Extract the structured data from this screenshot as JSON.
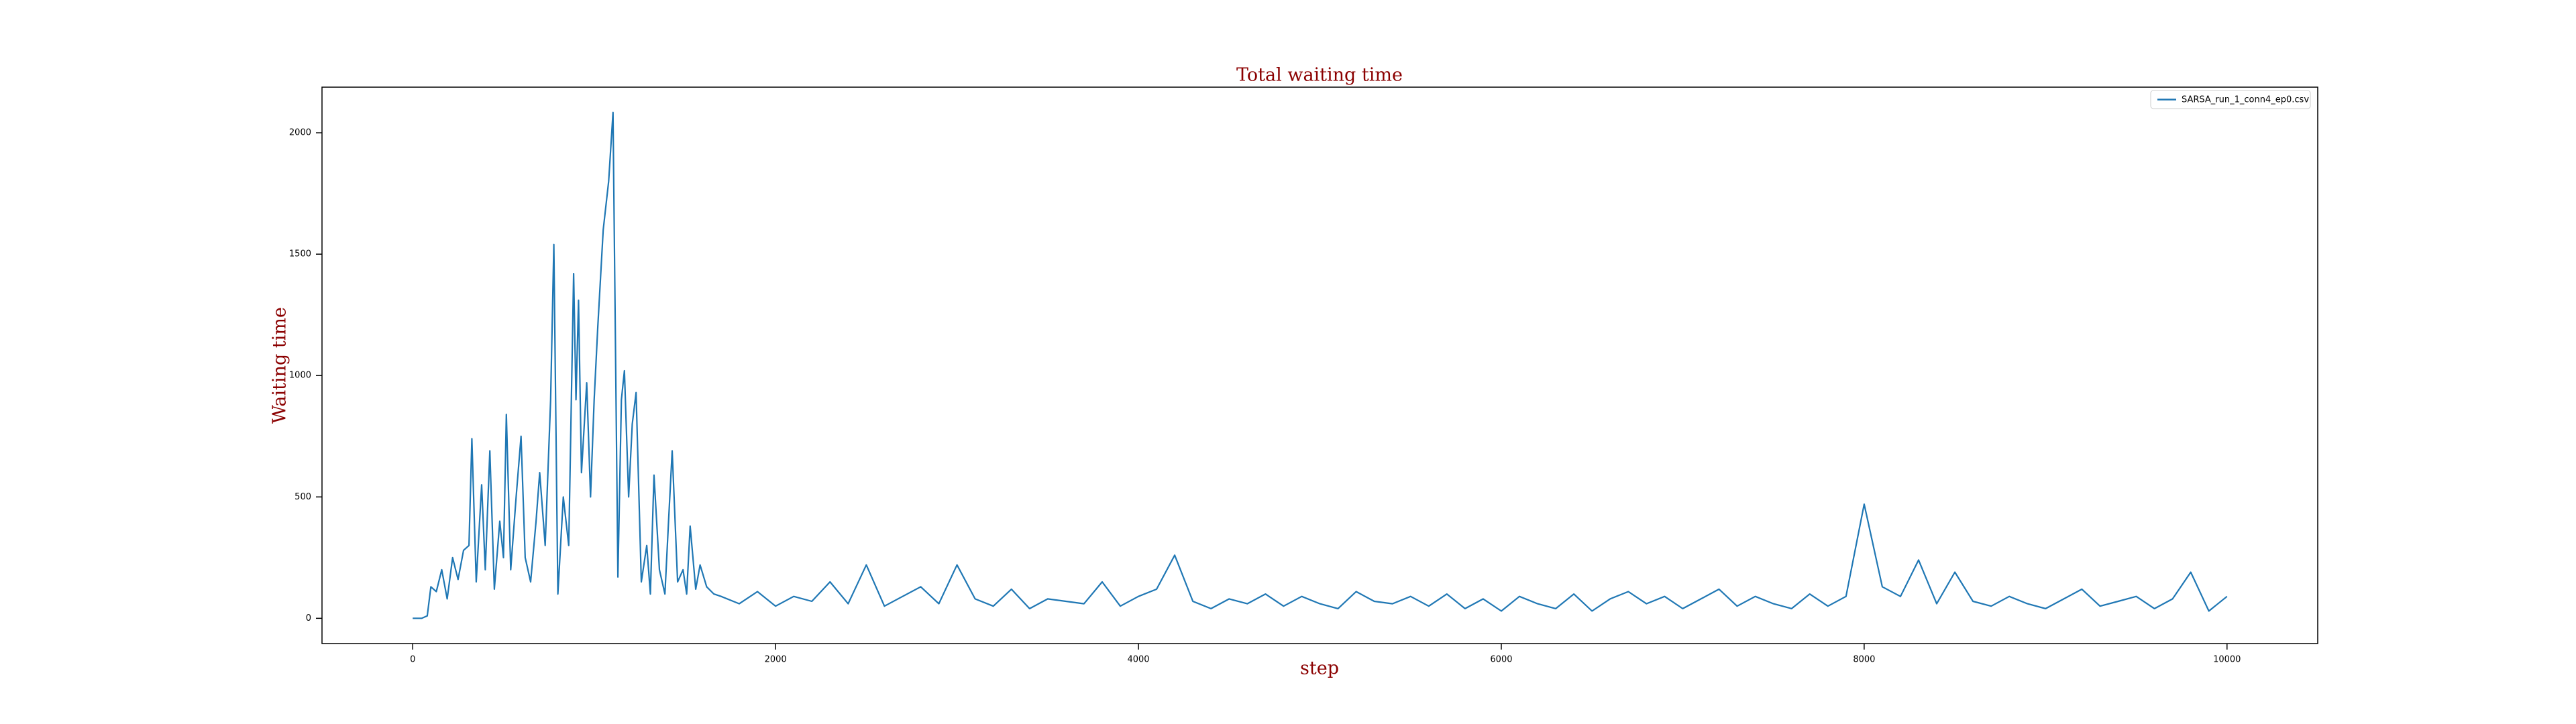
{
  "chart_data": {
    "type": "line",
    "title": "Total waiting time",
    "x_label": "step",
    "y_label": "Waiting time",
    "x": [
      0,
      50,
      80,
      100,
      130,
      160,
      190,
      220,
      250,
      280,
      310,
      326,
      350,
      380,
      400,
      425,
      450,
      480,
      500,
      516,
      540,
      570,
      597,
      620,
      650,
      680,
      700,
      730,
      760,
      778,
      800,
      830,
      860,
      887,
      900,
      914,
      930,
      959,
      980,
      1000,
      1020,
      1050,
      1080,
      1104,
      1131,
      1150,
      1167,
      1190,
      1210,
      1231,
      1260,
      1290,
      1310,
      1330,
      1360,
      1390,
      1410,
      1430,
      1460,
      1490,
      1510,
      1529,
      1560,
      1584,
      1620,
      1660,
      1700,
      1800,
      1900,
      2000,
      2100,
      2200,
      2300,
      2400,
      2500,
      2600,
      2700,
      2800,
      2900,
      3000,
      3100,
      3200,
      3300,
      3400,
      3500,
      3600,
      3700,
      3800,
      3900,
      4000,
      4100,
      4200,
      4300,
      4400,
      4500,
      4600,
      4700,
      4800,
      4900,
      5000,
      5100,
      5200,
      5300,
      5400,
      5500,
      5600,
      5700,
      5800,
      5900,
      6000,
      6100,
      6200,
      6300,
      6400,
      6500,
      6600,
      6700,
      6800,
      6900,
      7000,
      7100,
      7200,
      7300,
      7400,
      7500,
      7600,
      7700,
      7800,
      7900,
      8000,
      8100,
      8200,
      8300,
      8400,
      8500,
      8600,
      8700,
      8800,
      8900,
      9000,
      9100,
      9200,
      9300,
      9400,
      9500,
      9600,
      9700,
      9800,
      9900,
      10000
    ],
    "series": [
      {
        "name": "SARSA_run_1_conn4_ep0.csv",
        "color": "#1f77b4",
        "values": [
          0,
          0,
          10,
          130,
          110,
          200,
          80,
          250,
          160,
          280,
          300,
          740,
          150,
          550,
          200,
          690,
          120,
          400,
          250,
          840,
          200,
          500,
          750,
          250,
          150,
          400,
          600,
          300,
          900,
          1540,
          100,
          500,
          300,
          1420,
          900,
          1310,
          600,
          970,
          500,
          900,
          1200,
          1600,
          1800,
          2084,
          170,
          900,
          1020,
          500,
          800,
          930,
          150,
          300,
          100,
          590,
          200,
          100,
          400,
          690,
          150,
          200,
          100,
          380,
          120,
          220,
          130,
          100,
          90,
          60,
          110,
          50,
          90,
          70,
          150,
          60,
          220,
          50,
          90,
          130,
          60,
          220,
          80,
          50,
          120,
          40,
          80,
          70,
          60,
          150,
          50,
          90,
          120,
          260,
          70,
          40,
          80,
          60,
          100,
          50,
          90,
          60,
          40,
          110,
          70,
          60,
          90,
          50,
          100,
          40,
          80,
          30,
          90,
          60,
          40,
          100,
          30,
          80,
          110,
          60,
          90,
          40,
          80,
          120,
          50,
          90,
          60,
          40,
          100,
          50,
          90,
          470,
          130,
          90,
          240,
          60,
          190,
          70,
          50,
          90,
          60,
          40,
          80,
          120,
          50,
          70,
          90,
          40,
          80,
          190,
          30,
          90
        ]
      }
    ],
    "xlim": [
      -500,
      10500
    ],
    "ylim": [
      -104,
      2188
    ],
    "xticks": [
      0,
      2000,
      4000,
      6000,
      8000,
      10000
    ],
    "yticks": [
      0,
      500,
      1000,
      1500,
      2000
    ],
    "legend": "upper right"
  }
}
